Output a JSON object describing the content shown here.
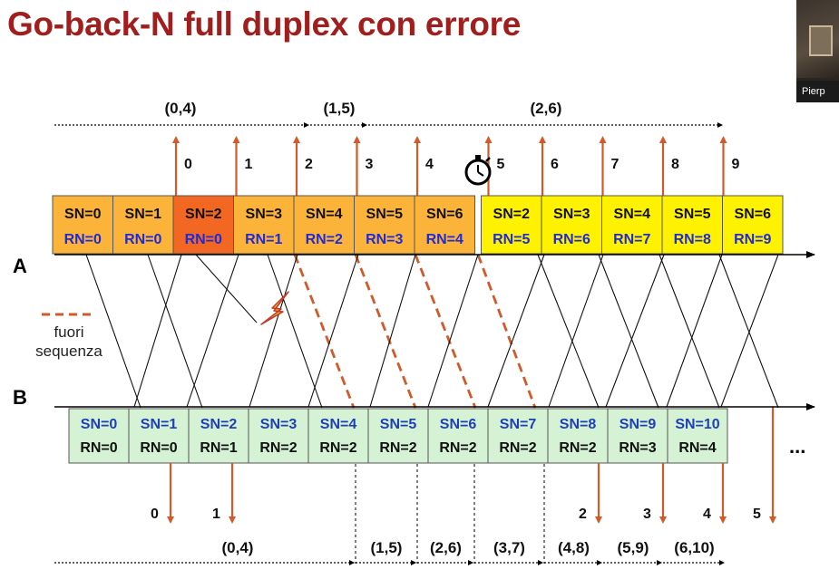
{
  "title": "Go-back-N full duplex con errore",
  "participant_name": "Pierp",
  "labels": {
    "station_a": "A",
    "station_b": "B",
    "ellipsis": "...",
    "legend_line1": "fuori",
    "legend_line2": "sequenza"
  },
  "colors": {
    "title": "#a01e1e",
    "arrow": "#d05a2a",
    "frame_a_orange": "#fbb33a",
    "frame_a_error": "#f26722",
    "frame_a_yellow": "#fff200",
    "frame_b": "#d5f2d5",
    "sn_b_text": "#1f3fb8",
    "rn_a_text": "#1f2bd6"
  },
  "a_windows": [
    {
      "label": "(0,4)",
      "from": 0,
      "to": 4
    },
    {
      "label": "(1,5)",
      "from": 4,
      "to": 5
    },
    {
      "label": "(2,6)",
      "from": 5,
      "to": 12
    }
  ],
  "a_frames": [
    {
      "sn": "SN=0",
      "rn": "RN=0",
      "state": "orange"
    },
    {
      "sn": "SN=1",
      "rn": "RN=0",
      "state": "orange"
    },
    {
      "sn": "SN=2",
      "rn": "RN=0",
      "state": "error"
    },
    {
      "sn": "SN=3",
      "rn": "RN=1",
      "state": "orange"
    },
    {
      "sn": "SN=4",
      "rn": "RN=2",
      "state": "orange"
    },
    {
      "sn": "SN=5",
      "rn": "RN=3",
      "state": "orange"
    },
    {
      "sn": "SN=6",
      "rn": "RN=4",
      "state": "orange"
    },
    {
      "sn": "SN=2",
      "rn": "RN=5",
      "state": "yellow"
    },
    {
      "sn": "SN=3",
      "rn": "RN=6",
      "state": "yellow"
    },
    {
      "sn": "SN=4",
      "rn": "RN=7",
      "state": "yellow"
    },
    {
      "sn": "SN=5",
      "rn": "RN=8",
      "state": "yellow"
    },
    {
      "sn": "SN=6",
      "rn": "RN=9",
      "state": "yellow"
    }
  ],
  "a_ack_arrows": [
    "0",
    "1",
    "2",
    "3",
    "4",
    "5",
    "6",
    "7",
    "8",
    "9"
  ],
  "b_frames": [
    {
      "sn": "SN=0",
      "rn": "RN=0"
    },
    {
      "sn": "SN=1",
      "rn": "RN=0"
    },
    {
      "sn": "SN=2",
      "rn": "RN=1"
    },
    {
      "sn": "SN=3",
      "rn": "RN=2"
    },
    {
      "sn": "SN=4",
      "rn": "RN=2"
    },
    {
      "sn": "SN=5",
      "rn": "RN=2"
    },
    {
      "sn": "SN=6",
      "rn": "RN=2"
    },
    {
      "sn": "SN=7",
      "rn": "RN=2"
    },
    {
      "sn": "SN=8",
      "rn": "RN=2"
    },
    {
      "sn": "SN=9",
      "rn": "RN=3"
    },
    {
      "sn": "SN=10",
      "rn": "RN=4"
    }
  ],
  "b_ack_arrows": [
    "0",
    "1",
    "2",
    "3",
    "4",
    "5"
  ],
  "b_windows": [
    {
      "label": "(0,4)"
    },
    {
      "label": "(1,5)"
    },
    {
      "label": "(2,6)"
    },
    {
      "label": "(3,7)"
    },
    {
      "label": "(4,8)"
    },
    {
      "label": "(5,9)"
    },
    {
      "label": "(6,10)"
    }
  ]
}
